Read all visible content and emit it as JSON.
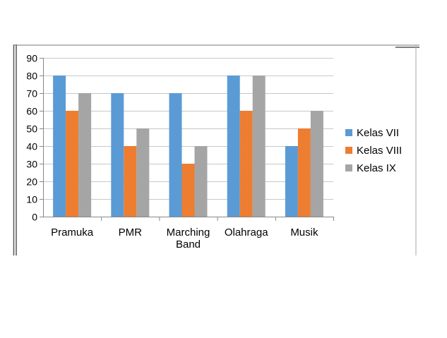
{
  "chart_data": {
    "type": "bar",
    "categories": [
      [
        "Pramuka"
      ],
      [
        "PMR"
      ],
      [
        "Marching",
        "Band"
      ],
      [
        "Olahraga"
      ],
      [
        "Musik"
      ]
    ],
    "series": [
      {
        "name": "Kelas VII",
        "color": "#5b9bd5",
        "values": [
          80,
          70,
          70,
          80,
          40
        ]
      },
      {
        "name": "Kelas VIII",
        "color": "#ed7d31",
        "values": [
          60,
          40,
          30,
          60,
          50
        ]
      },
      {
        "name": "Kelas IX",
        "color": "#a5a5a5",
        "values": [
          70,
          50,
          40,
          80,
          60
        ]
      }
    ],
    "yticks": [
      "0",
      "10",
      "20",
      "30",
      "40",
      "50",
      "60",
      "70",
      "80",
      "90"
    ],
    "ylim": [
      0,
      90
    ],
    "grid": true,
    "legend_position": "right"
  }
}
